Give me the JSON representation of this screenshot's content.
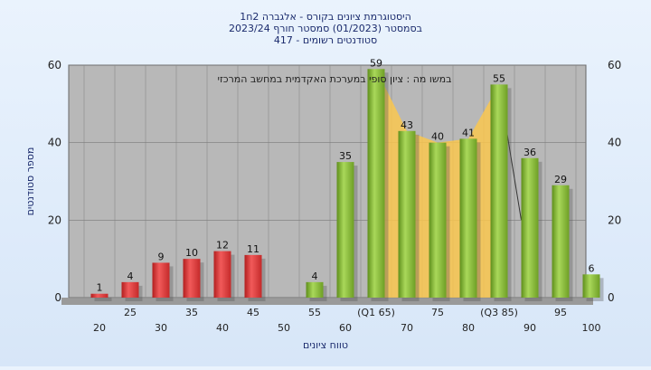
{
  "chart_data": {
    "type": "bar",
    "title_lines": [
      "היסטוגרמת ציונים בקורס - אלגברה 2ח1",
      "בסמסטר  (01/2023)  סמסטר חורף  2023/24",
      "סטודנטים רשומים - 417"
    ],
    "xlabel": "טווח ציונים",
    "ylabel": "מספר סטודנטים",
    "annotation": "במשו מה : ציון סופי במערכת האקדמית במחשב המרכזי",
    "ylim": [
      0,
      60
    ],
    "yticks": [
      0,
      20,
      40,
      60
    ],
    "grid": true,
    "categories": [
      "20",
      "25",
      "30",
      "35",
      "40",
      "45",
      "50",
      "55",
      "60",
      "65",
      "70",
      "75",
      "80",
      "85",
      "90",
      "95",
      "100"
    ],
    "category_labels": [
      "20",
      "25",
      "30",
      "35",
      "40",
      "45",
      "50",
      "55",
      "60",
      "(Q1 65)",
      "70",
      "75",
      "80",
      "(Q3 85)",
      "90",
      "95",
      "100"
    ],
    "values": [
      1,
      4,
      9,
      10,
      12,
      11,
      0,
      4,
      35,
      59,
      43,
      40,
      41,
      55,
      36,
      29,
      6
    ],
    "value_labels": [
      "1",
      "4",
      "9",
      "10",
      "12",
      "11",
      "",
      "4",
      "35",
      "59",
      "43",
      "40",
      "41",
      "55",
      "36",
      "29",
      "6"
    ],
    "fail_threshold": 55,
    "colors": {
      "fail_bar": "#e03c3c",
      "pass_bar": "#8cc63f",
      "quartile_area": "#f9c74f",
      "plot_bg": "#b8b8b8",
      "background": "#dce9f8"
    }
  }
}
